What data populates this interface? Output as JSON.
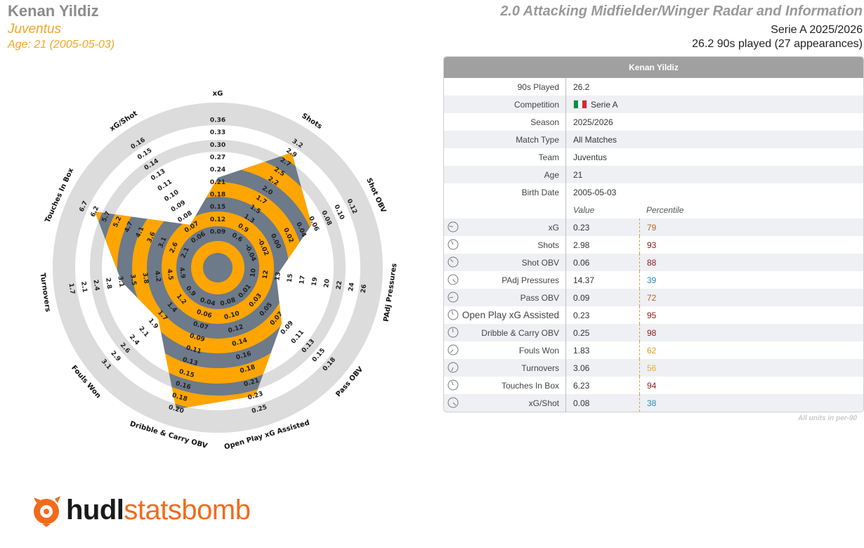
{
  "header": {
    "player": "Kenan Yildiz",
    "team": "Juventus",
    "age_line": "Age: 21 (2005-05-03)",
    "title": "2.0 Attacking Midfielder/Winger Radar and Information",
    "competition_line": "Serie A 2025/2026",
    "played_line": "26.2 90s played (27 appearances)"
  },
  "colors": {
    "accent_orange": "#ffa500",
    "radar_blue": "#6c7a8a",
    "ring_grey": "#dcdcdc",
    "pct_dark_red": "#8b1a1a",
    "pct_brown": "#b5651d",
    "pct_orange": "#e09a1a",
    "pct_yellow": "#e5b319",
    "pct_blue": "#2a8db3"
  },
  "chart_data": {
    "type": "radar",
    "axes": [
      {
        "label": "xG",
        "ticks": [
          "0.09",
          "0.12",
          "0.15",
          "0.18",
          "0.21",
          "0.24",
          "0.27",
          "0.30",
          "0.33",
          "0.36"
        ],
        "min": 0.06,
        "max": 0.36,
        "value": 0.23
      },
      {
        "label": "Shots",
        "ticks": [
          "0.6",
          "0.9",
          "1.3",
          "1.5",
          "1.7",
          "2.0",
          "2.2",
          "2.5",
          "2.7",
          "2.9",
          "3.2"
        ],
        "min": 0.45,
        "max": 3.2,
        "value": 2.98
      },
      {
        "label": "Shot OBV",
        "ticks": [
          "-0.04",
          "-0.02",
          "0.00",
          "0.02",
          "0.04",
          "0.06",
          "0.08",
          "0.10",
          "0.12"
        ],
        "min": -0.06,
        "max": 0.12,
        "value": 0.06
      },
      {
        "label": "PAdj Pressures",
        "ticks": [
          "10",
          "12",
          "13",
          "15",
          "17",
          "19",
          "20",
          "22",
          "24",
          "26"
        ],
        "min": 8.5,
        "max": 26,
        "value": 14.37
      },
      {
        "label": "Pass OBV",
        "ticks": [
          "0.01",
          "0.03",
          "0.05",
          "0.07",
          "0.09",
          "0.11",
          "0.13",
          "0.15",
          "0.18"
        ],
        "min": -0.01,
        "max": 0.18,
        "value": 0.09
      },
      {
        "label": "Open Play xG Assisted",
        "ticks": [
          "0.08",
          "0.10",
          "0.12",
          "0.14",
          "0.16",
          "0.18",
          "0.21",
          "0.23",
          "0.25"
        ],
        "min": 0.06,
        "max": 0.25,
        "value": 0.23
      },
      {
        "label": "Dribble & Carry OBV",
        "ticks": [
          "0.04",
          "0.06",
          "0.07",
          "0.09",
          "0.11",
          "0.13",
          "0.15",
          "0.16",
          "0.18",
          "0.20"
        ],
        "min": 0.02,
        "max": 0.2,
        "value": 0.25
      },
      {
        "label": "Fouls Won",
        "ticks": [
          "0.9",
          "1.2",
          "1.4",
          "1.7",
          "1.9",
          "2.1",
          "2.4",
          "2.6",
          "2.9",
          "3.1"
        ],
        "min": 0.65,
        "max": 3.1,
        "value": 1.83
      },
      {
        "label": "Turnovers",
        "ticks": [
          "4.9",
          "4.5",
          "4.2",
          "3.8",
          "3.5",
          "3.1",
          "2.8",
          "2.4",
          "2.1",
          "1.7"
        ],
        "min": 5.3,
        "max": 1.7,
        "value": 3.06
      },
      {
        "label": "Touches In Box",
        "ticks": [
          "2.1",
          "2.6",
          "3.1",
          "3.6",
          "4.1",
          "4.7",
          "5.2",
          "5.7",
          "6.2",
          "6.7"
        ],
        "min": 1.6,
        "max": 6.7,
        "value": 6.23
      },
      {
        "label": "xG/Shot",
        "ticks": [
          "0.06",
          "0.07",
          "0.08",
          "0.09",
          "0.10",
          "0.11",
          "0.13",
          "0.14",
          "0.15",
          "0.16"
        ],
        "min": 0.05,
        "max": 0.16,
        "value": 0.08
      }
    ]
  },
  "table": {
    "title": "Kenan Yildiz",
    "info_rows": [
      {
        "label": "90s Played",
        "value": "26.2"
      },
      {
        "label": "Competition",
        "value": "Serie A",
        "flag": [
          "#009246",
          "#ffffff",
          "#ce2b37"
        ]
      },
      {
        "label": "Season",
        "value": "2025/2026"
      },
      {
        "label": "Match Type",
        "value": "All Matches"
      },
      {
        "label": "Team",
        "value": "Juventus"
      },
      {
        "label": "Age",
        "value": "21"
      },
      {
        "label": "Birth Date",
        "value": "2005-05-03"
      }
    ],
    "metric_header": {
      "value": "Value",
      "percentile": "Percentile"
    },
    "metric_rows": [
      {
        "label": "xG",
        "value": "0.23",
        "percentile": "79",
        "color": "#b5651d",
        "pct": 79
      },
      {
        "label": "Shots",
        "value": "2.98",
        "percentile": "93",
        "color": "#8b1a1a",
        "pct": 93
      },
      {
        "label": "Shot OBV",
        "value": "0.06",
        "percentile": "88",
        "color": "#8b1a1a",
        "pct": 88
      },
      {
        "label": "PAdj Pressures",
        "value": "14.37",
        "percentile": "39",
        "color": "#2a8db3",
        "pct": 39
      },
      {
        "label": "Pass OBV",
        "value": "0.09",
        "percentile": "72",
        "color": "#b5651d",
        "pct": 72
      },
      {
        "label": "Open Play xG Assisted",
        "value": "0.23",
        "percentile": "95",
        "color": "#8b1a1a",
        "pct": 95,
        "big": true
      },
      {
        "label": "Dribble & Carry OBV",
        "value": "0.25",
        "percentile": "98",
        "color": "#8b1a1a",
        "pct": 98
      },
      {
        "label": "Fouls Won",
        "value": "1.83",
        "percentile": "62",
        "color": "#e09a1a",
        "pct": 62
      },
      {
        "label": "Turnovers",
        "value": "3.06",
        "percentile": "56",
        "color": "#e5b319",
        "pct": 56
      },
      {
        "label": "Touches In Box",
        "value": "6.23",
        "percentile": "94",
        "color": "#8b1a1a",
        "pct": 94
      },
      {
        "label": "xG/Shot",
        "value": "0.08",
        "percentile": "38",
        "color": "#2a8db3",
        "pct": 38
      }
    ],
    "footnote": "All units in per-90"
  },
  "logo": {
    "part1": "hudl",
    "part2": "statsbomb",
    "icon": "statsbomb-logo-icon"
  }
}
